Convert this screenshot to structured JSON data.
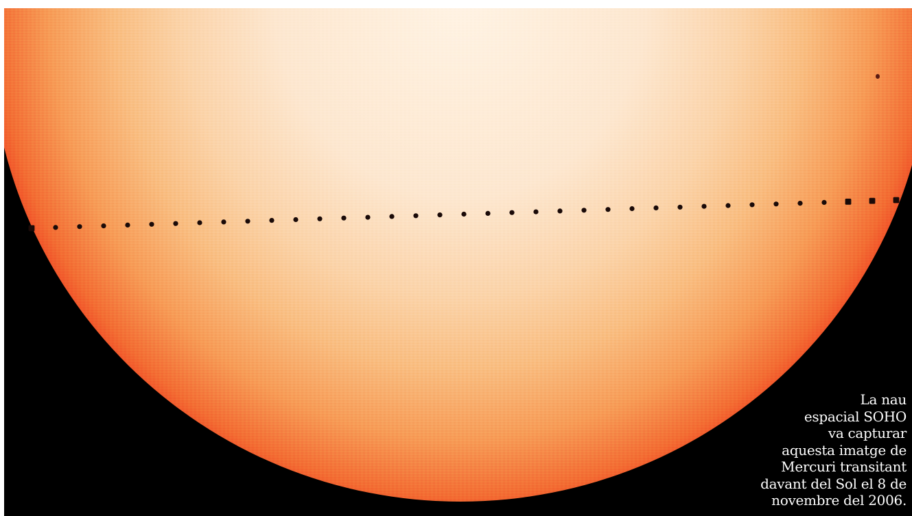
{
  "image": {
    "subject": "sun-disc-with-mercury-transit",
    "colors": {
      "background": "#000000",
      "sun_center": "#fff3e4",
      "sun_limb": "#e8131a",
      "mercury_dot": "#1a0a08",
      "caption_text": "#ffffff"
    },
    "transit_dot_count": 37
  },
  "caption": {
    "lines": [
      "La nau",
      "espacial SOHO",
      "va capturar",
      "aquesta imatge de",
      "Mercuri transitant",
      "davant del Sol el 8 de",
      "novembre del 2006."
    ]
  }
}
